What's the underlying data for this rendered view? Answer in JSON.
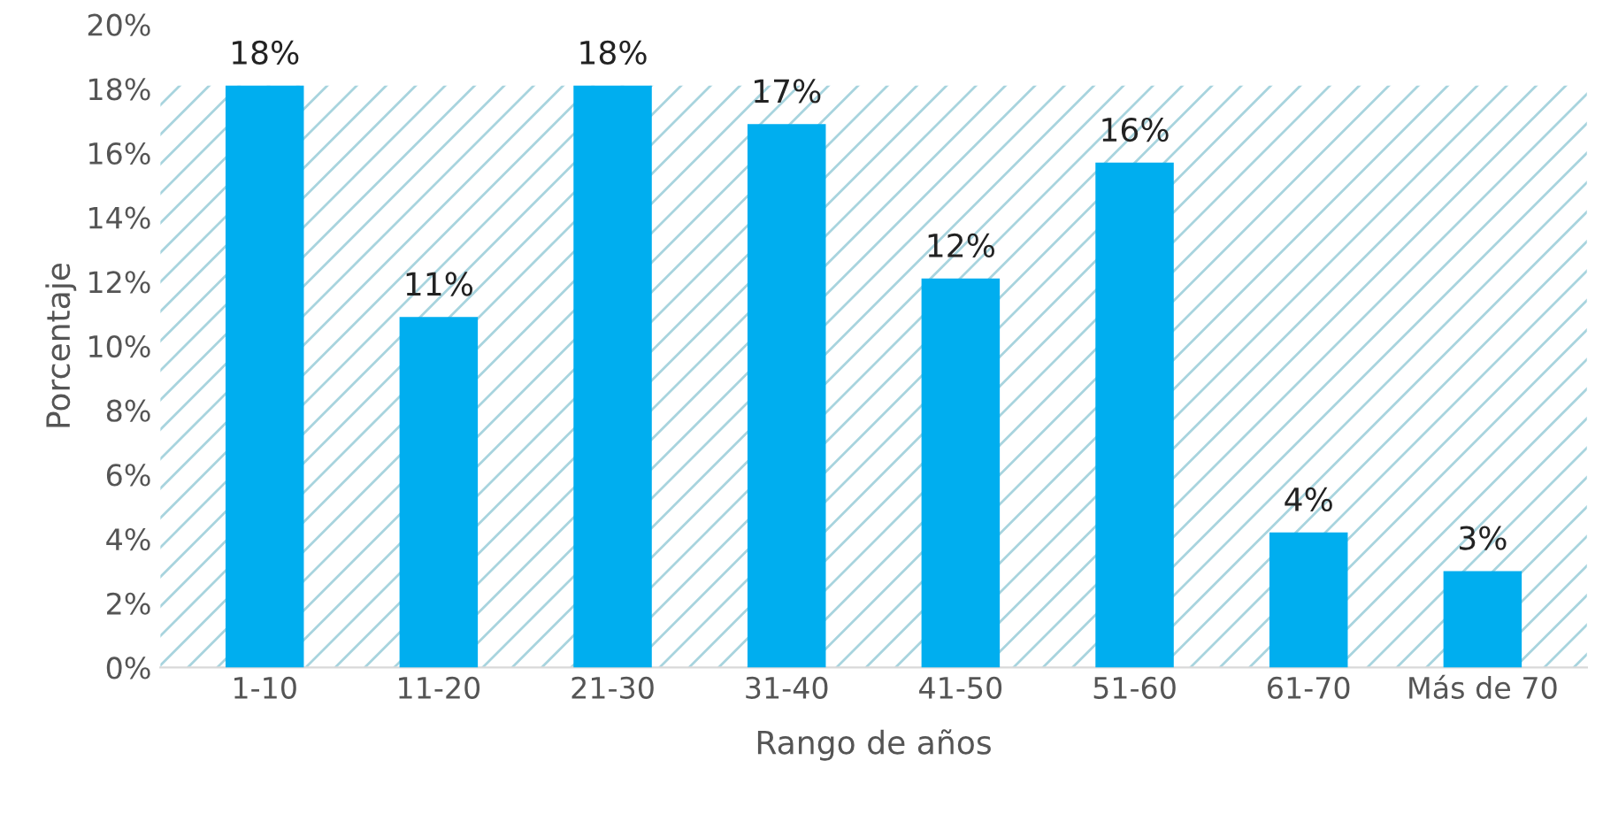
{
  "chart_data": {
    "type": "bar",
    "xlabel": "Rango de años",
    "ylabel": "Porcentaje",
    "categories": [
      "1-10",
      "11-20",
      "21-30",
      "31-40",
      "41-50",
      "51-60",
      "61-70",
      "Más de 70"
    ],
    "values": [
      18.1,
      10.9,
      18.1,
      16.9,
      12.1,
      15.7,
      4.2,
      3.0
    ],
    "value_labels": [
      "18%",
      "11%",
      "18%",
      "17%",
      "12%",
      "16%",
      "4%",
      "3%"
    ],
    "color": "#00aeef",
    "ylim": [
      0,
      20
    ],
    "yticks": [
      {
        "value": 0,
        "label": "0%"
      },
      {
        "value": 2,
        "label": "2%"
      },
      {
        "value": 4,
        "label": "4%"
      },
      {
        "value": 6,
        "label": "6%"
      },
      {
        "value": 8,
        "label": "8%"
      },
      {
        "value": 10,
        "label": "10%"
      },
      {
        "value": 12,
        "label": "12%"
      },
      {
        "value": 14,
        "label": "14%"
      },
      {
        "value": 16,
        "label": "16%"
      },
      {
        "value": 18,
        "label": "18%"
      },
      {
        "value": 20,
        "label": "20%"
      }
    ],
    "bands": [
      {
        "axis": "y",
        "from": 0,
        "to": 18.1,
        "color": "#a8d4de"
      }
    ]
  }
}
